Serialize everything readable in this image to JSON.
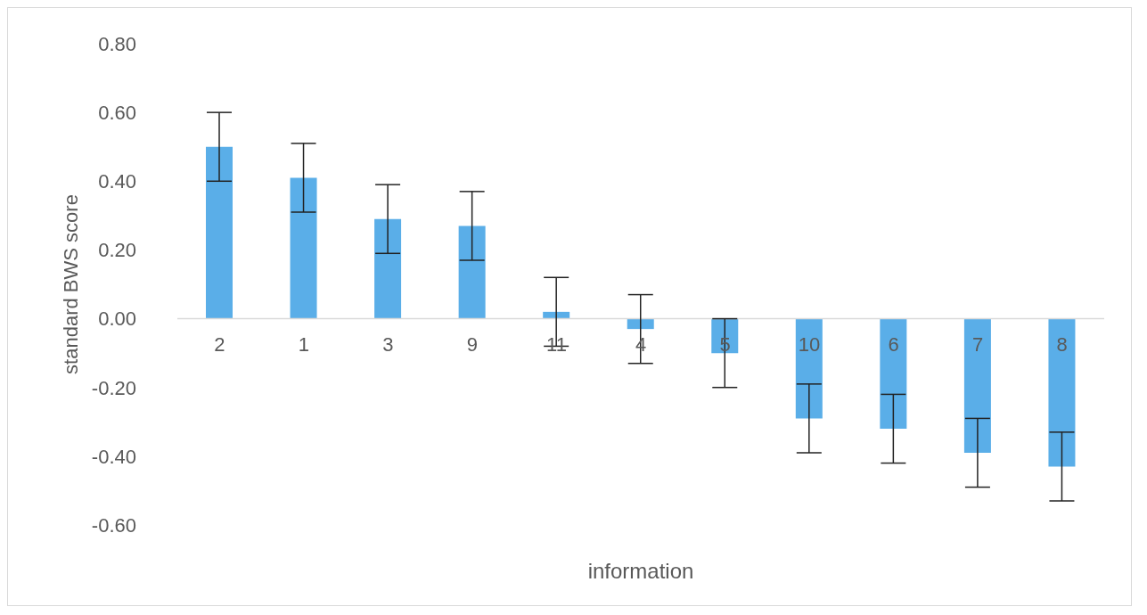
{
  "chart_data": {
    "type": "bar",
    "xlabel": "information",
    "ylabel": "standard BWS score",
    "categories": [
      "2",
      "1",
      "3",
      "9",
      "11",
      "4",
      "5",
      "10",
      "6",
      "7",
      "8"
    ],
    "values": [
      0.5,
      0.41,
      0.29,
      0.27,
      0.02,
      -0.03,
      -0.1,
      -0.29,
      -0.32,
      -0.39,
      -0.43
    ],
    "errors": [
      0.1,
      0.1,
      0.1,
      0.1,
      0.1,
      0.1,
      0.1,
      0.1,
      0.1,
      0.1,
      0.1
    ],
    "color": "#5aaee8",
    "ylim": [
      -0.6,
      0.8
    ],
    "yticks": [
      {
        "value": -0.6,
        "label": "-0.60"
      },
      {
        "value": -0.4,
        "label": "-0.40"
      },
      {
        "value": -0.2,
        "label": "-0.20"
      },
      {
        "value": 0,
        "label": "0.00"
      },
      {
        "value": 0.2,
        "label": "0.20"
      },
      {
        "value": 0.4,
        "label": "0.40"
      },
      {
        "value": 0.6,
        "label": "0.60"
      },
      {
        "value": 0.8,
        "label": "0.80"
      }
    ],
    "grid": false,
    "legend": false
  }
}
